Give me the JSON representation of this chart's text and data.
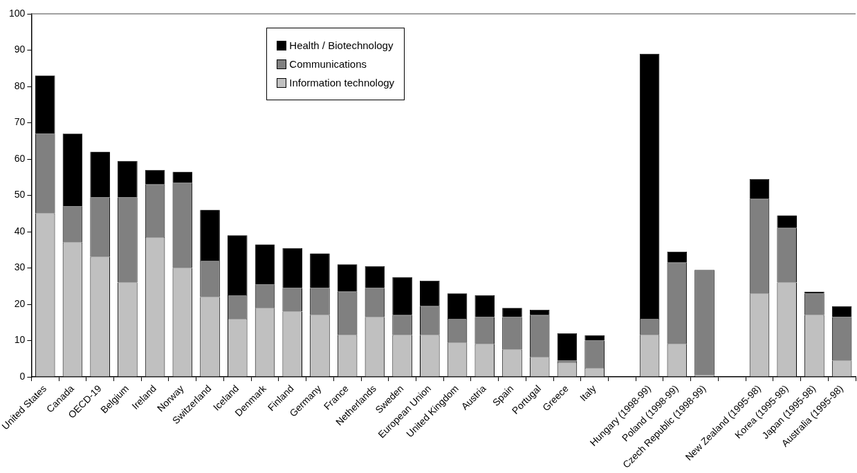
{
  "chart_data": {
    "type": "bar",
    "stacked": true,
    "categories": [
      "United States",
      "Canada",
      "OECD-19",
      "Belgium",
      "Ireland",
      "Norway",
      "Switzerland",
      "Iceland",
      "Denmark",
      "Finland",
      "Germany",
      "France",
      "Netherlands",
      "Sweden",
      "European Union",
      "United Kingdom",
      "Austria",
      "Spain",
      "Portugal",
      "Greece",
      "Italy",
      null,
      "Hungary (1998-99)",
      "Poland (1998-99)",
      "Czech Republic (1998-99)",
      null,
      "New Zealand (1995-98)",
      "Korea (1995-98)",
      "Japan (1995-98)",
      "Australia (1995-98)"
    ],
    "series": [
      {
        "name": "Information technology",
        "color": "#c0c0c0",
        "values": [
          45,
          37,
          33,
          26,
          38.5,
          30,
          22,
          16,
          19,
          18,
          17,
          11.5,
          16.5,
          11.5,
          11.5,
          9.5,
          9,
          7.5,
          5.5,
          4,
          2.5,
          null,
          11.5,
          9,
          0.5,
          null,
          23,
          26,
          17,
          4.5
        ]
      },
      {
        "name": "Communications",
        "color": "#808080",
        "values": [
          22,
          10,
          16.5,
          23.5,
          14.5,
          23.5,
          10,
          6.5,
          6.5,
          6.5,
          7.5,
          12,
          8,
          5.5,
          8,
          6.5,
          7.5,
          9,
          11.5,
          0.5,
          7.5,
          null,
          4.5,
          22.5,
          29,
          null,
          26,
          15,
          6,
          12
        ]
      },
      {
        "name": "Health / Biotechnology",
        "color": "#000000",
        "values": [
          16,
          20,
          12.5,
          10,
          4,
          3,
          14,
          16.5,
          11,
          11,
          9.5,
          7.5,
          6,
          10.5,
          7,
          7,
          6,
          2.5,
          1.5,
          7.5,
          1.5,
          null,
          73,
          3,
          0,
          null,
          5.5,
          3.5,
          0.5,
          3
        ]
      }
    ],
    "ylim": [
      0,
      100
    ],
    "yticks": [
      0,
      10,
      20,
      30,
      40,
      50,
      60,
      70,
      80,
      90,
      100
    ],
    "grid": false,
    "legend": "top"
  }
}
